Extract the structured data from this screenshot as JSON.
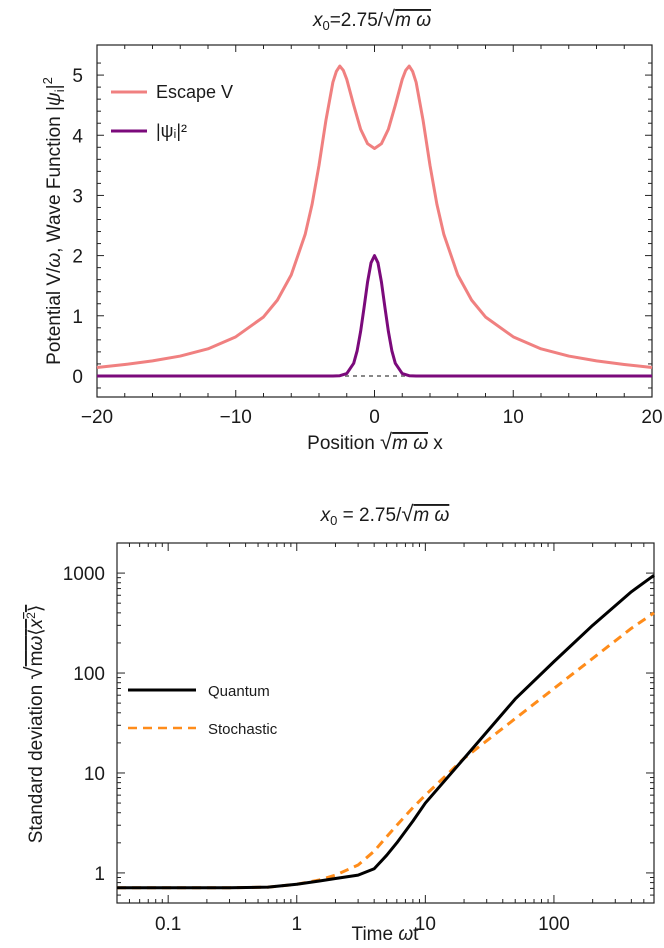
{
  "chart_data": [
    {
      "type": "line",
      "title": "x₀=2.75/√mω",
      "xlabel": "Position √mω x",
      "ylabel": "Potential V/ω, Wave Function |ψᵢ|²",
      "xlim": [
        -20,
        20
      ],
      "ylim": [
        -0.35,
        5.5
      ],
      "xticks": [
        -20,
        -10,
        0,
        10,
        20
      ],
      "xtick_labels": [
        "−20",
        "−10",
        "0",
        "10",
        "20"
      ],
      "yticks": [
        0,
        1,
        2,
        3,
        4,
        5
      ],
      "ytick_labels": [
        "0",
        "1",
        "2",
        "3",
        "4",
        "5"
      ],
      "legend_position": "top-left",
      "series": [
        {
          "name": "Escape V",
          "color": "#f08080",
          "x": [
            -20,
            -18,
            -16,
            -14,
            -12,
            -10,
            -8,
            -7,
            -6,
            -5,
            -4.5,
            -4,
            -3.5,
            -3,
            -2.75,
            -2.5,
            -2.25,
            -2,
            -1.5,
            -1,
            -0.5,
            0,
            0.5,
            1,
            1.5,
            2,
            2.25,
            2.5,
            2.75,
            3,
            3.5,
            4,
            4.5,
            5,
            6,
            7,
            8,
            10,
            12,
            14,
            16,
            18,
            20
          ],
          "y": [
            0.14,
            0.19,
            0.25,
            0.33,
            0.45,
            0.65,
            0.98,
            1.26,
            1.68,
            2.35,
            2.85,
            3.5,
            4.25,
            4.88,
            5.06,
            5.15,
            5.08,
            4.93,
            4.5,
            4.1,
            3.86,
            3.78,
            3.86,
            4.1,
            4.5,
            4.93,
            5.08,
            5.15,
            5.06,
            4.88,
            4.25,
            3.5,
            2.85,
            2.35,
            1.68,
            1.26,
            0.98,
            0.65,
            0.45,
            0.33,
            0.25,
            0.19,
            0.14
          ]
        },
        {
          "name": "|ψᵢ|²",
          "color": "#7b0a7b",
          "x": [
            -20,
            -3,
            -2.5,
            -2,
            -1.5,
            -1.25,
            -1,
            -0.75,
            -0.5,
            -0.25,
            0,
            0.25,
            0.5,
            0.75,
            1,
            1.25,
            1.5,
            2,
            2.5,
            3,
            20
          ],
          "y": [
            0,
            0,
            0.004,
            0.04,
            0.21,
            0.42,
            0.74,
            1.14,
            1.56,
            1.88,
            2.0,
            1.88,
            1.56,
            1.14,
            0.74,
            0.42,
            0.21,
            0.04,
            0.004,
            0,
            0
          ]
        }
      ],
      "reference_line": {
        "y": 0,
        "color": "#888888",
        "style": "dotted"
      },
      "legend": [
        {
          "label": "Escape V",
          "color": "#f08080"
        },
        {
          "label": "|ψᵢ|²",
          "color": "#7b0a7b"
        }
      ]
    },
    {
      "type": "line",
      "title": "x₀ = 2.75/√mω",
      "xlabel": "Time ωt",
      "ylabel": "Standard deviation √mω⟨x²⟩",
      "xscale": "log",
      "yscale": "log",
      "xlim": [
        0.04,
        600
      ],
      "ylim": [
        0.5,
        2000
      ],
      "xticks": [
        0.1,
        1,
        10,
        100
      ],
      "xtick_labels": [
        "0.1",
        "1",
        "10",
        "100"
      ],
      "yticks": [
        1,
        10,
        100,
        1000
      ],
      "ytick_labels": [
        "1",
        "10",
        "100",
        "1000"
      ],
      "legend_position": "center-left",
      "series": [
        {
          "name": "Quantum",
          "color": "#000000",
          "style": "solid",
          "x": [
            0.04,
            0.1,
            0.3,
            0.6,
            1,
            1.5,
            2,
            3,
            4,
            5,
            6,
            8,
            10,
            20,
            50,
            100,
            200,
            400,
            600
          ],
          "y": [
            0.71,
            0.71,
            0.71,
            0.72,
            0.77,
            0.83,
            0.88,
            0.95,
            1.1,
            1.5,
            2.0,
            3.3,
            5.0,
            14,
            55,
            130,
            300,
            650,
            950
          ]
        },
        {
          "name": "Stochastic",
          "color": "#ff8c1a",
          "style": "dashed",
          "x": [
            0.04,
            0.1,
            0.3,
            0.6,
            1,
            1.5,
            2,
            3,
            4,
            5,
            6,
            8,
            10,
            20,
            50,
            100,
            200,
            400,
            600
          ],
          "y": [
            0.71,
            0.71,
            0.71,
            0.72,
            0.77,
            0.85,
            0.95,
            1.2,
            1.65,
            2.3,
            3.0,
            4.5,
            6.0,
            14,
            35,
            70,
            140,
            280,
            400
          ]
        }
      ],
      "legend": [
        {
          "label": "Quantum",
          "color": "#000000"
        },
        {
          "label": "Stochastic",
          "color": "#ff8c1a"
        }
      ]
    }
  ]
}
